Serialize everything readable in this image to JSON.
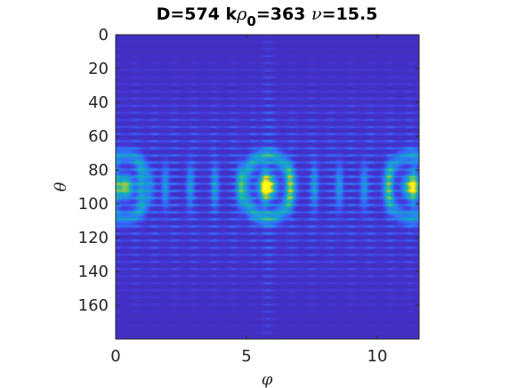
{
  "chart_data": {
    "type": "heatmap",
    "title_parts": {
      "a": "D=574 k",
      "rho": "ρ",
      "sub": "0",
      "b": "=363 ",
      "nu": "ν",
      "c": "=15.5"
    },
    "xlabel": "φ",
    "ylabel": "θ",
    "xlim": [
      0,
      11.6
    ],
    "ylim": [
      0,
      180
    ],
    "y_reversed": true,
    "x_ticks": [
      "0",
      "5",
      "10"
    ],
    "x_tick_values": [
      0,
      5,
      10
    ],
    "y_ticks": [
      "0",
      "20",
      "40",
      "60",
      "80",
      "100",
      "120",
      "140",
      "160"
    ],
    "y_tick_values": [
      0,
      20,
      40,
      60,
      80,
      100,
      120,
      140,
      160
    ],
    "colormap": "parula",
    "colors": {
      "low": "#3e26a8",
      "mid": "#2c99ce",
      "high": "#f9fb15"
    },
    "peaks": [
      {
        "phi": 5.8,
        "theta": 90,
        "level": 1.0
      },
      {
        "phi": 0.35,
        "theta": 90,
        "level": 0.75
      },
      {
        "phi": 11.3,
        "theta": 90,
        "level": 0.75
      }
    ],
    "grid": false
  }
}
